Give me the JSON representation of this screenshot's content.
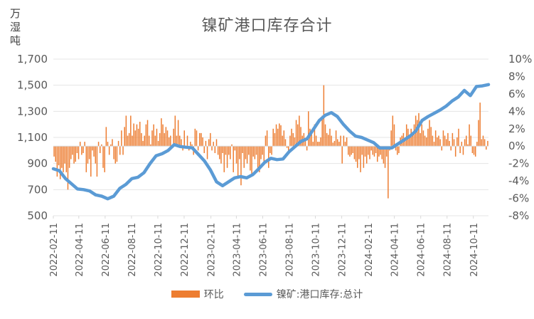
{
  "chart_data": {
    "type": "bar+line",
    "title": "镍矿港口库存合计",
    "ylabel_left": "万湿吨",
    "ylim_left": [
      500,
      1700
    ],
    "yticks_left": [
      "500",
      "700",
      "900",
      "1,100",
      "1,300",
      "1,500",
      "1,700"
    ],
    "ylim_right": [
      -0.08,
      0.1
    ],
    "yticks_right": [
      "-8%",
      "-6%",
      "-4%",
      "-2%",
      "0%",
      "2%",
      "4%",
      "6%",
      "8%",
      "10%"
    ],
    "xticks": [
      "2022-02-11",
      "2022-04-11",
      "2022-06-11",
      "2022-08-11",
      "2022-10-11",
      "2022-12-11",
      "2023-02-11",
      "2023-04-11",
      "2023-06-11",
      "2023-08-11",
      "2023-10-11",
      "2023-12-11",
      "2024-02-11",
      "2024-04-11",
      "2024-06-11",
      "2024-08-11",
      "2024-10-11"
    ],
    "x_start": "2022-02-11",
    "x_end": "2024-11-15",
    "series": [
      {
        "name": "环比",
        "type": "bar",
        "axis": "right",
        "color": "#ED7D31",
        "values": [
          -0.012,
          -0.018,
          -0.035,
          -0.022,
          -0.038,
          -0.025,
          -0.03,
          -0.02,
          -0.03,
          -0.05,
          -0.025,
          -0.015,
          -0.01,
          -0.02,
          -0.018,
          -0.008,
          -0.015,
          0.005,
          -0.01,
          -0.008,
          0.005,
          -0.03,
          -0.02,
          -0.015,
          -0.035,
          -0.005,
          -0.012,
          -0.02,
          -0.035,
          0.005,
          -0.008,
          0.002,
          -0.025,
          -0.03,
          0.022,
          0.005,
          -0.01,
          0.002,
          0.008,
          -0.015,
          -0.02,
          -0.018,
          0.006,
          -0.01,
          0.018,
          -0.01,
          0.022,
          0.035,
          0.012,
          0.015,
          0.035,
          0.012,
          0.026,
          0.018,
          0.025,
          0.02,
          0.028,
          0.015,
          0.006,
          0.012,
          0.025,
          0.03,
          0.012,
          0.002,
          0.018,
          0.025,
          0.012,
          0.02,
          0.006,
          0.015,
          0.032,
          0.025,
          0.015,
          0.022,
          0.018,
          0.01,
          0.012,
          -0.002,
          0.02,
          0.035,
          0.012,
          0.03,
          0.012,
          0.008,
          -0.005,
          0.018,
          -0.002,
          0.012,
          -0.005,
          0.005,
          0.002,
          -0.01,
          0.02,
          0.018,
          -0.005,
          0.015,
          0.015,
          0.01,
          -0.008,
          0.006,
          -0.015,
          0.008,
          0.015,
          -0.005,
          0.005,
          -0.008,
          0.008,
          -0.01,
          -0.015,
          -0.02,
          -0.008,
          -0.03,
          -0.01,
          -0.025,
          -0.01,
          -0.015,
          0.002,
          -0.03,
          -0.005,
          -0.02,
          -0.035,
          -0.015,
          -0.045,
          -0.008,
          -0.025,
          -0.015,
          -0.02,
          -0.01,
          -0.028,
          -0.035,
          -0.012,
          -0.015,
          -0.01,
          -0.025,
          -0.03,
          -0.015,
          -0.01,
          -0.02,
          0.012,
          0.018,
          -0.025,
          -0.008,
          -0.01,
          0.02,
          0.015,
          0.025,
          0.02,
          0.026,
          0.024,
          0.012,
          0.018,
          0.008,
          -0.002,
          -0.005,
          0.012,
          0.02,
          0.015,
          0.01,
          0.03,
          0.025,
          0.035,
          0.022,
          0.012,
          0.015,
          0.008,
          -0.005,
          0.04,
          0.02,
          0.015,
          0.005,
          0.025,
          0.012,
          0.005,
          0.005,
          0.01,
          0.035,
          0.07,
          0.025,
          0.015,
          0.013,
          0.02,
          0.012,
          0.004,
          0.006,
          0.018,
          0.008,
          0.005,
          0.012,
          -0.02,
          0.012,
          0.005,
          0.01,
          -0.01,
          -0.012,
          -0.01,
          -0.008,
          -0.015,
          -0.018,
          -0.025,
          -0.015,
          -0.03,
          -0.01,
          -0.025,
          -0.012,
          -0.02,
          -0.01,
          -0.015,
          -0.005,
          -0.01,
          -0.012,
          -0.008,
          -0.018,
          -0.012,
          -0.01,
          -0.015,
          -0.02,
          -0.025,
          -0.012,
          -0.06,
          -0.005,
          0.018,
          0.035,
          0.025,
          -0.005,
          -0.01,
          -0.008,
          0.01,
          0.012,
          0.015,
          0.008,
          0.025,
          0.02,
          0.012,
          0.02,
          0.015,
          0.025,
          0.035,
          0.03,
          0.038,
          0.015,
          0.025,
          0.018,
          0.012,
          0.01,
          0.02,
          0.03,
          0.022,
          0.012,
          0.005,
          0.018,
          0.01,
          0.012,
          0.008,
          -0.005,
          0.018,
          0.012,
          0.008,
          0.015,
          0.006,
          -0.005,
          0.015,
          0.008,
          -0.012,
          0.01,
          0.02,
          -0.008,
          0.005,
          -0.01,
          0.008,
          0.012,
          0.002,
          0.025,
          0.012,
          -0.008,
          -0.01,
          -0.012,
          0.005,
          0.03,
          0.05,
          0.008,
          0.012,
          0.008,
          -0.004,
          0.006
        ]
      },
      {
        "name": "镍矿:港口库存:总计",
        "type": "line",
        "axis": "left",
        "color": "#5B9BD5",
        "points": [
          [
            "2022-02-11",
            860
          ],
          [
            "2022-02-25",
            845
          ],
          [
            "2022-03-11",
            785
          ],
          [
            "2022-03-25",
            745
          ],
          [
            "2022-04-08",
            705
          ],
          [
            "2022-04-22",
            700
          ],
          [
            "2022-05-06",
            690
          ],
          [
            "2022-05-20",
            660
          ],
          [
            "2022-06-03",
            650
          ],
          [
            "2022-06-17",
            630
          ],
          [
            "2022-07-01",
            650
          ],
          [
            "2022-07-15",
            710
          ],
          [
            "2022-07-29",
            740
          ],
          [
            "2022-08-12",
            785
          ],
          [
            "2022-08-26",
            795
          ],
          [
            "2022-09-09",
            830
          ],
          [
            "2022-09-23",
            900
          ],
          [
            "2022-10-07",
            960
          ],
          [
            "2022-10-21",
            975
          ],
          [
            "2022-11-04",
            1000
          ],
          [
            "2022-11-18",
            1045
          ],
          [
            "2022-12-02",
            1030
          ],
          [
            "2022-12-16",
            1025
          ],
          [
            "2022-12-30",
            1020
          ],
          [
            "2023-01-13",
            970
          ],
          [
            "2023-01-27",
            920
          ],
          [
            "2023-02-10",
            850
          ],
          [
            "2023-02-24",
            760
          ],
          [
            "2023-03-10",
            730
          ],
          [
            "2023-03-24",
            760
          ],
          [
            "2023-04-07",
            790
          ],
          [
            "2023-04-21",
            800
          ],
          [
            "2023-05-05",
            790
          ],
          [
            "2023-05-19",
            815
          ],
          [
            "2023-06-02",
            860
          ],
          [
            "2023-06-16",
            910
          ],
          [
            "2023-06-30",
            940
          ],
          [
            "2023-07-14",
            930
          ],
          [
            "2023-07-28",
            935
          ],
          [
            "2023-08-11",
            990
          ],
          [
            "2023-08-25",
            1030
          ],
          [
            "2023-09-08",
            1070
          ],
          [
            "2023-09-22",
            1090
          ],
          [
            "2023-10-06",
            1160
          ],
          [
            "2023-10-20",
            1230
          ],
          [
            "2023-11-03",
            1270
          ],
          [
            "2023-11-17",
            1290
          ],
          [
            "2023-12-01",
            1260
          ],
          [
            "2023-12-15",
            1200
          ],
          [
            "2023-12-29",
            1150
          ],
          [
            "2024-01-12",
            1110
          ],
          [
            "2024-01-26",
            1100
          ],
          [
            "2024-02-09",
            1080
          ],
          [
            "2024-02-23",
            1060
          ],
          [
            "2024-03-08",
            1020
          ],
          [
            "2024-03-22",
            1020
          ],
          [
            "2024-04-05",
            1020
          ],
          [
            "2024-04-19",
            1050
          ],
          [
            "2024-05-03",
            1080
          ],
          [
            "2024-05-17",
            1110
          ],
          [
            "2024-05-31",
            1150
          ],
          [
            "2024-06-14",
            1230
          ],
          [
            "2024-06-28",
            1260
          ],
          [
            "2024-07-12",
            1285
          ],
          [
            "2024-07-26",
            1310
          ],
          [
            "2024-08-09",
            1340
          ],
          [
            "2024-08-23",
            1380
          ],
          [
            "2024-09-06",
            1410
          ],
          [
            "2024-09-20",
            1460
          ],
          [
            "2024-10-04",
            1420
          ],
          [
            "2024-10-18",
            1490
          ],
          [
            "2024-11-01",
            1495
          ],
          [
            "2024-11-15",
            1505
          ]
        ]
      }
    ]
  }
}
